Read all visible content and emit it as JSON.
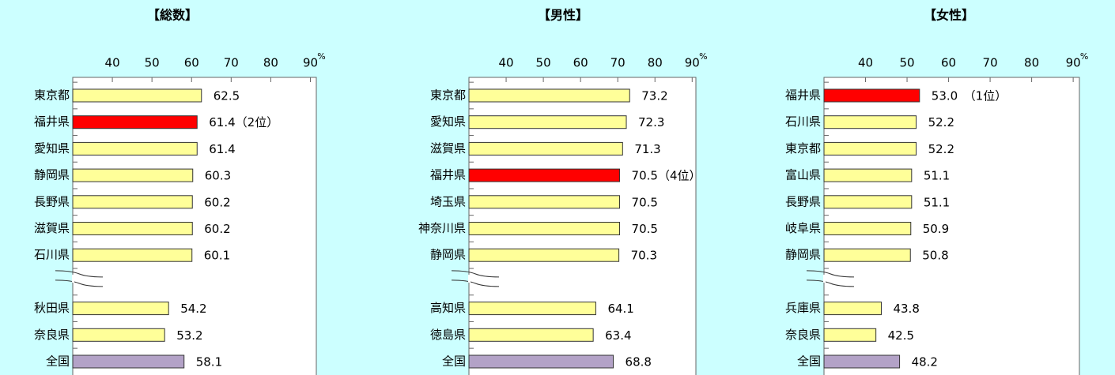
{
  "chart_data": [
    {
      "type": "bar",
      "orientation": "horizontal",
      "title": "【総数】",
      "unit": "%",
      "categories": [
        "東京都",
        "福井県",
        "愛知県",
        "静岡県",
        "長野県",
        "滋賀県",
        "石川県",
        null,
        "秋田県",
        "奈良県",
        "全国"
      ],
      "values": [
        62.5,
        61.4,
        61.4,
        60.3,
        60.2,
        60.2,
        60.1,
        null,
        54.2,
        53.2,
        58.1
      ],
      "value_labels": [
        "62.5",
        "61.4（2位）",
        "61.4",
        "60.3",
        "60.2",
        "60.2",
        "60.1",
        null,
        "54.2",
        "53.2",
        "58.1"
      ],
      "colors": [
        "#ffff99",
        "#ff0000",
        "#ffff99",
        "#ffff99",
        "#ffff99",
        "#ffff99",
        "#ffff99",
        null,
        "#ffff99",
        "#ffff99",
        "#b3a2c7"
      ],
      "xlim": [
        30,
        91.5
      ],
      "xticks": [
        40,
        50,
        60,
        70,
        80,
        90
      ]
    },
    {
      "type": "bar",
      "orientation": "horizontal",
      "title": "【男性】",
      "unit": "%",
      "categories": [
        "東京都",
        "愛知県",
        "滋賀県",
        "福井県",
        "埼玉県",
        "神奈川県",
        "静岡県",
        null,
        "高知県",
        "徳島県",
        "全国"
      ],
      "values": [
        73.2,
        72.3,
        71.3,
        70.5,
        70.5,
        70.5,
        70.3,
        null,
        64.1,
        63.4,
        68.8
      ],
      "value_labels": [
        "73.2",
        "72.3",
        "71.3",
        "70.5（4位）",
        "70.5",
        "70.5",
        "70.3",
        null,
        "64.1",
        "63.4",
        "68.8"
      ],
      "colors": [
        "#ffff99",
        "#ffff99",
        "#ffff99",
        "#ff0000",
        "#ffff99",
        "#ffff99",
        "#ffff99",
        null,
        "#ffff99",
        "#ffff99",
        "#b3a2c7"
      ],
      "xlim": [
        30,
        91
      ],
      "xticks": [
        40,
        50,
        60,
        70,
        80,
        90
      ]
    },
    {
      "type": "bar",
      "orientation": "horizontal",
      "title": "【女性】",
      "unit": "%",
      "categories": [
        "福井県",
        "石川県",
        "東京都",
        "富山県",
        "長野県",
        "岐阜県",
        "静岡県",
        null,
        "兵庫県",
        "奈良県",
        "全国"
      ],
      "values": [
        53.0,
        52.2,
        52.2,
        51.1,
        51.1,
        50.9,
        50.8,
        null,
        43.8,
        42.5,
        48.2
      ],
      "value_labels": [
        "53.0　（1位）",
        "52.2",
        "52.2",
        "51.1",
        "51.1",
        "50.9",
        "50.8",
        null,
        "43.8",
        "42.5",
        "48.2"
      ],
      "colors": [
        "#ff0000",
        "#ffff99",
        "#ffff99",
        "#ffff99",
        "#ffff99",
        "#ffff99",
        "#ffff99",
        null,
        "#ffff99",
        "#ffff99",
        "#b3a2c7"
      ],
      "xlim": [
        30,
        91.5
      ],
      "xticks": [
        40,
        50,
        60,
        70,
        80,
        90
      ]
    }
  ]
}
